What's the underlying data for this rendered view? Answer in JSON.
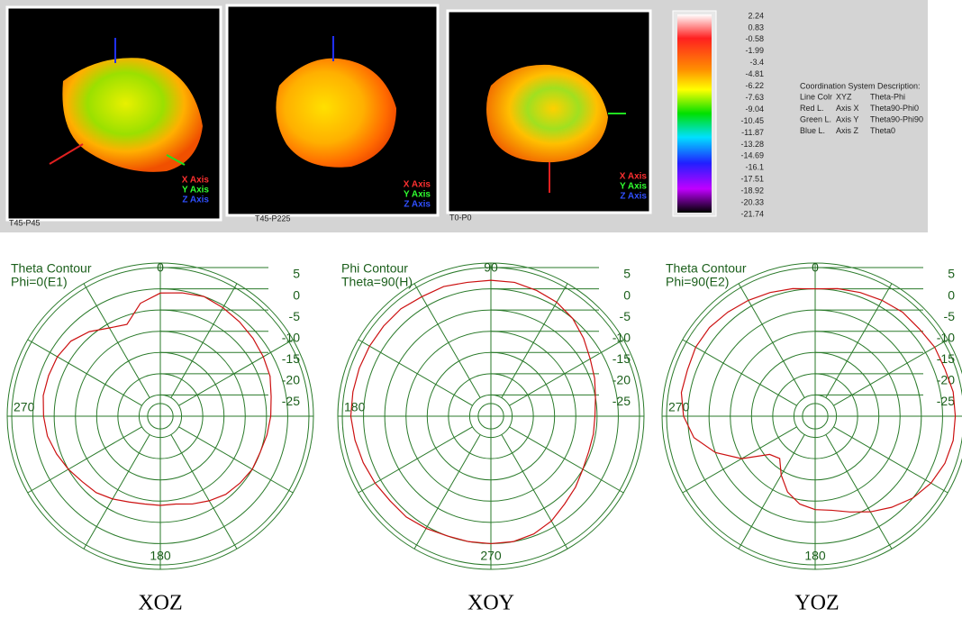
{
  "views": [
    {
      "caption": "T45-P45",
      "axes": [
        "X Axis",
        "Y Axis",
        "Z Axis"
      ]
    },
    {
      "caption": "T45-P225",
      "axes": [
        "X Axis",
        "Y Axis",
        "Z Axis"
      ]
    },
    {
      "caption": "T0-P0",
      "axes": [
        "X Axis",
        "Y Axis",
        "Z Axis"
      ]
    }
  ],
  "colorbar": {
    "ticks": [
      2.24,
      0.83,
      -0.58,
      -1.99,
      -3.4,
      -4.81,
      -6.22,
      -7.63,
      -9.04,
      -10.45,
      -11.87,
      -13.28,
      -14.69,
      -16.1,
      -17.51,
      -18.92,
      -20.33,
      -21.74
    ]
  },
  "legend": {
    "title": "Coordination System Description:",
    "rows": [
      [
        "Line Colr",
        "XYZ",
        "Theta-Phi"
      ],
      [
        "Red L.",
        "Axis X",
        "Theta90-Phi0"
      ],
      [
        "Green L.",
        "Axis Y",
        "Theta90-Phi90"
      ],
      [
        "Blue L.",
        "Axis Z",
        "Theta0"
      ]
    ]
  },
  "chart_data": [
    {
      "type": "polar",
      "title": [
        "Theta Contour",
        "Phi=0(E1)"
      ],
      "caption": "XOZ",
      "theta_labels": {
        "top": "0",
        "left": "270",
        "bottom": "180"
      },
      "theta_zero": "top",
      "direction": "clockwise",
      "rlim": [
        -30,
        5
      ],
      "rticks": [
        5,
        0,
        -5,
        -10,
        -15,
        -20,
        -25
      ],
      "color": "#cc1111",
      "theta": [
        0,
        10,
        20,
        30,
        40,
        50,
        60,
        70,
        80,
        90,
        100,
        110,
        120,
        130,
        140,
        150,
        160,
        170,
        180,
        190,
        200,
        210,
        220,
        230,
        240,
        250,
        260,
        270,
        280,
        290,
        300,
        310,
        320,
        330,
        340,
        350
      ],
      "values": [
        -1,
        -0.5,
        0,
        -0.5,
        -1,
        -1.5,
        -2,
        -2.5,
        -3.5,
        -4,
        -4.5,
        -5,
        -5,
        -5.5,
        -6,
        -7,
        -8,
        -9,
        -9,
        -9,
        -8.5,
        -7.5,
        -6.5,
        -6,
        -5,
        -4,
        -3,
        -2.5,
        -2,
        -2,
        -2,
        -2.5,
        -4,
        -6,
        -7,
        -3
      ]
    },
    {
      "type": "polar",
      "title": [
        "Phi Contour",
        "Theta=90(H)"
      ],
      "caption": "XOY",
      "theta_labels": {
        "top": "90",
        "left": "180",
        "bottom": "270"
      },
      "theta_zero": "right",
      "direction": "counterclockwise",
      "rlim": [
        -30,
        5
      ],
      "rticks": [
        5,
        0,
        -5,
        -10,
        -15,
        -20,
        -25
      ],
      "color": "#cc1111",
      "theta": [
        0,
        10,
        20,
        30,
        40,
        50,
        60,
        70,
        80,
        90,
        100,
        110,
        120,
        130,
        140,
        150,
        160,
        170,
        180,
        190,
        200,
        210,
        220,
        230,
        240,
        250,
        260,
        270,
        280,
        290,
        300,
        310,
        320,
        330,
        340,
        350
      ],
      "values": [
        -5.5,
        -5,
        -4,
        -3,
        -1.5,
        0,
        1,
        1.5,
        2,
        2,
        2,
        2.5,
        2.5,
        3,
        3,
        3,
        3,
        3,
        3,
        2.5,
        2,
        1.5,
        1,
        1,
        0.5,
        0,
        0,
        0,
        0,
        -0.5,
        -1.5,
        -3,
        -4,
        -5,
        -5.5,
        -5.5
      ]
    },
    {
      "type": "polar",
      "title": [
        "Theta Contour",
        "Phi=90(E2)"
      ],
      "caption": "YOZ",
      "theta_labels": {
        "top": "0",
        "left": "270",
        "bottom": "180"
      },
      "theta_zero": "top",
      "direction": "clockwise",
      "rlim": [
        -30,
        5
      ],
      "rticks": [
        5,
        0,
        -5,
        -10,
        -15,
        -20,
        -25
      ],
      "color": "#cc1111",
      "theta": [
        0,
        10,
        20,
        30,
        40,
        50,
        60,
        70,
        80,
        90,
        100,
        110,
        120,
        130,
        140,
        150,
        160,
        170,
        180,
        190,
        200,
        210,
        220,
        230,
        240,
        250,
        260,
        270,
        280,
        290,
        300,
        310,
        320,
        330,
        340,
        350
      ],
      "values": [
        0,
        0.5,
        1,
        1.5,
        2,
        2,
        2.5,
        2.5,
        3,
        3,
        3,
        2.5,
        1.5,
        0,
        -2,
        -4,
        -6,
        -7.5,
        -8,
        -9,
        -11,
        -14,
        -17,
        -16,
        -10,
        -5,
        -1,
        1,
        2,
        2,
        2.5,
        2.5,
        2,
        1.5,
        1,
        0.5
      ]
    }
  ]
}
